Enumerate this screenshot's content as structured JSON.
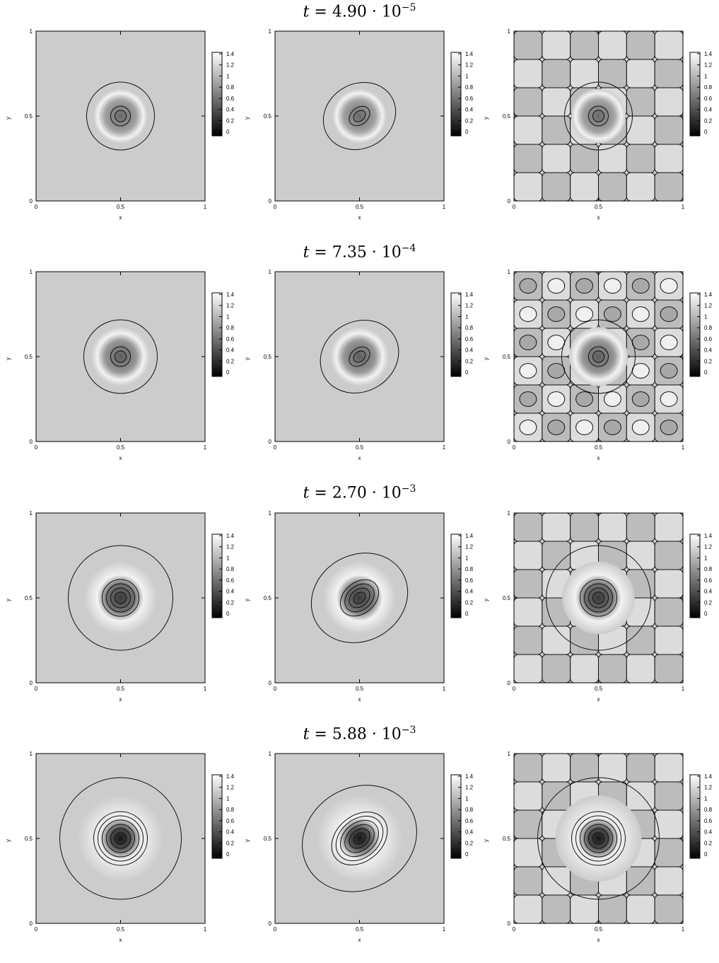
{
  "chart_data": [
    {
      "type": "heatmap",
      "title_var": "t",
      "title_mantissa": "4.90",
      "title_base": "10",
      "title_exp": "−5",
      "xlabel": "x",
      "ylabel": "y",
      "xlim": [
        0,
        1
      ],
      "ylim": [
        0,
        1
      ],
      "x_ticks": [
        "0",
        "0.5",
        "1"
      ],
      "y_ticks": [
        "0",
        "0.5",
        "1"
      ],
      "colorbar": {
        "range": [
          0,
          1.4
        ],
        "ticks": [
          "1.4",
          "1.2",
          "1",
          "0.8",
          "0.6",
          "0.4",
          "0.2",
          "0"
        ],
        "colormap": "grayscale"
      },
      "panels": [
        {
          "kind": "circle",
          "strength": 0.6
        },
        {
          "kind": "wobble",
          "strength": 0.6
        },
        {
          "kind": "checker",
          "strength": 0.6
        }
      ]
    },
    {
      "type": "heatmap",
      "title_var": "t",
      "title_mantissa": "7.35",
      "title_base": "10",
      "title_exp": "−4",
      "xlabel": "x",
      "ylabel": "y",
      "xlim": [
        0,
        1
      ],
      "ylim": [
        0,
        1
      ],
      "x_ticks": [
        "0",
        "0.5",
        "1"
      ],
      "y_ticks": [
        "0",
        "0.5",
        "1"
      ],
      "colorbar": {
        "range": [
          0,
          1.4
        ],
        "ticks": [
          "1.4",
          "1.2",
          "1",
          "0.8",
          "0.6",
          "0.4",
          "0.2",
          "0"
        ],
        "colormap": "grayscale"
      },
      "panels": [
        {
          "kind": "circle",
          "strength": 0.8
        },
        {
          "kind": "wobble",
          "strength": 0.8
        },
        {
          "kind": "checker",
          "strength": 0.8
        }
      ]
    },
    {
      "type": "heatmap",
      "title_var": "t",
      "title_mantissa": "2.70",
      "title_base": "10",
      "title_exp": "−3",
      "xlabel": "x",
      "ylabel": "y",
      "xlim": [
        0,
        1
      ],
      "ylim": [
        0,
        1
      ],
      "x_ticks": [
        "0",
        "0.5",
        "1"
      ],
      "y_ticks": [
        "0",
        "0.5",
        "1"
      ],
      "colorbar": {
        "range": [
          0,
          1.4
        ],
        "ticks": [
          "1.4",
          "1.2",
          "1",
          "0.8",
          "0.6",
          "0.4",
          "0.2",
          "0"
        ],
        "colormap": "grayscale"
      },
      "panels": [
        {
          "kind": "circle",
          "strength": 1.4
        },
        {
          "kind": "wobble",
          "strength": 1.4
        },
        {
          "kind": "checker",
          "strength": 1.4
        }
      ]
    },
    {
      "type": "heatmap",
      "title_var": "t",
      "title_mantissa": "5.88",
      "title_base": "10",
      "title_exp": "−3",
      "xlabel": "x",
      "ylabel": "y",
      "xlim": [
        0,
        1
      ],
      "ylim": [
        0,
        1
      ],
      "x_ticks": [
        "0",
        "0.5",
        "1"
      ],
      "y_ticks": [
        "0",
        "0.5",
        "1"
      ],
      "colorbar": {
        "range": [
          0,
          1.4
        ],
        "ticks": [
          "1.4",
          "1.2",
          "1",
          "0.8",
          "0.6",
          "0.4",
          "0.2",
          "0"
        ],
        "colormap": "grayscale"
      },
      "panels": [
        {
          "kind": "circle",
          "strength": 2.0
        },
        {
          "kind": "wobble",
          "strength": 2.0
        },
        {
          "kind": "checker",
          "strength": 2.0
        }
      ]
    }
  ]
}
